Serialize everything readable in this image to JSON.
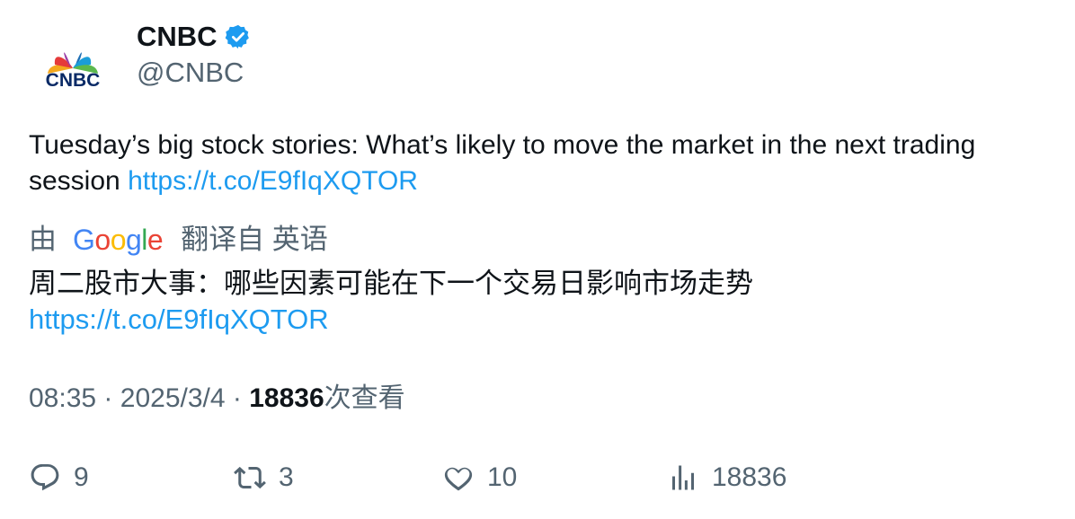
{
  "author": {
    "display_name": "CNBC",
    "handle": "@CNBC",
    "logo_text": "CNBC",
    "verified_color": "#1d9bf0"
  },
  "tweet": {
    "text": "Tuesday’s big stock stories: What’s likely to move the market in the next trading session",
    "link": "https://t.co/E9fIqXQTOR"
  },
  "translation": {
    "prefix": "由",
    "provider": "Google",
    "suffix": "翻译自 英语",
    "text": "周二股市大事：哪些因素可能在下一个交易日影响市场走势",
    "link": "https://t.co/E9fIqXQTOR"
  },
  "meta": {
    "time": "08:35",
    "separator": "·",
    "date": "2025/3/4",
    "views": "18836",
    "views_label": "次查看"
  },
  "actions": {
    "replies": "9",
    "retweets": "3",
    "likes": "10",
    "views": "18836"
  },
  "colors": {
    "link": "#1d9bf0",
    "secondary_text": "#536471",
    "primary_text": "#0f1419"
  }
}
